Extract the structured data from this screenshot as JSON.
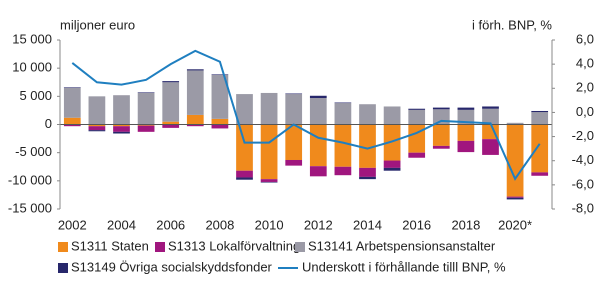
{
  "chart_data": {
    "type": "bar",
    "y_axis_title": "miljoner euro",
    "y2_axis_title": "i förh. BNP, %",
    "categories": [
      "2002",
      null,
      "2004",
      null,
      "2006",
      null,
      "2008",
      null,
      "2010",
      null,
      "2012",
      null,
      "2014",
      null,
      "2016",
      null,
      "2018",
      null,
      "2020*",
      null
    ],
    "series": [
      {
        "name": "S1311 Staten",
        "color": "#f08a1c",
        "values": [
          1200,
          -300,
          -300,
          -200,
          500,
          1700,
          1000,
          -8200,
          -9700,
          -6300,
          -7400,
          -7500,
          -7700,
          -6400,
          -5000,
          -3800,
          -2900,
          -2600,
          -12800,
          -8500
        ]
      },
      {
        "name": "S1313 Lokalförvaltning",
        "color": "#a0167e",
        "values": [
          -300,
          -700,
          -1000,
          -1100,
          -600,
          -300,
          -700,
          -1200,
          -500,
          -1000,
          -1800,
          -1500,
          -1600,
          -1300,
          -900,
          -500,
          -2000,
          -2800,
          -200,
          -600
        ]
      },
      {
        "name": "S13141 Arbetspensionsanstalter",
        "color": "#9b9aa6",
        "values": [
          5300,
          5000,
          5200,
          5600,
          7000,
          7900,
          7800,
          5400,
          5600,
          5400,
          4700,
          3800,
          3600,
          3200,
          2600,
          2700,
          2600,
          2800,
          300,
          2200
        ]
      },
      {
        "name": "S13149 Övriga socialskyddsfonder",
        "color": "#27276b",
        "values": [
          100,
          -200,
          -300,
          100,
          200,
          200,
          100,
          -400,
          -100,
          100,
          400,
          100,
          -400,
          -500,
          200,
          300,
          400,
          400,
          -300,
          200
        ]
      },
      {
        "name": "Underskott i förhållande tilll BNP, %",
        "color": "#1f7fc0",
        "axis": "y2",
        "values": [
          4.1,
          2.5,
          2.3,
          2.7,
          4.0,
          5.1,
          4.2,
          -2.5,
          -2.5,
          -1.0,
          -2.1,
          -2.5,
          -3.0,
          -2.4,
          -1.7,
          -0.7,
          -0.8,
          -0.9,
          -5.5,
          -2.6
        ]
      }
    ],
    "ylim": [
      -15000,
      15000
    ],
    "yticks": [
      {
        "value": -15000,
        "label": "-15 000"
      },
      {
        "value": -10000,
        "label": "-10 000"
      },
      {
        "value": -5000,
        "label": "-5 000"
      },
      0,
      {
        "value": 5000,
        "label": "5 000"
      },
      {
        "value": 10000,
        "label": "10 000"
      },
      {
        "value": 15000,
        "label": "15 000"
      }
    ],
    "y2lim": [
      -8,
      6
    ],
    "y2ticks": [
      {
        "value": -8,
        "label": "-8,0"
      },
      {
        "value": -6,
        "label": "-6,0"
      },
      {
        "value": -4,
        "label": "-4,0"
      },
      {
        "value": -2,
        "label": "-2,0"
      },
      {
        "value": 0,
        "label": "0,0"
      },
      {
        "value": 2,
        "label": "2,0"
      },
      {
        "value": 4,
        "label": "4,0"
      },
      {
        "value": 6,
        "label": "6,0"
      }
    ],
    "grid": false
  }
}
